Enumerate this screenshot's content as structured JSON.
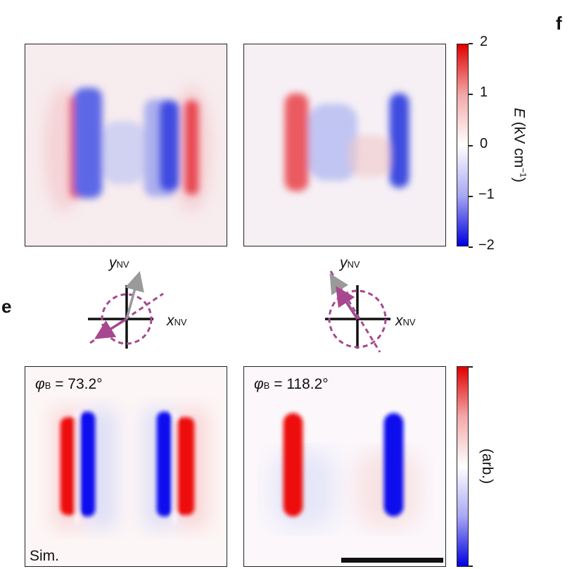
{
  "labels": {
    "panel_e": "e",
    "panel_f": "f",
    "axis_x": "x",
    "axis_y": "y",
    "axis_sub": "NV",
    "sim": "Sim."
  },
  "colorbar_top": {
    "label_symbol": "E",
    "label_units": "(kV cm",
    "label_exp": "−1",
    "label_close": ")",
    "ticks": [
      "2",
      "1",
      "0",
      "−1",
      "−2"
    ],
    "colors": [
      "#e00000",
      "#ffffff",
      "#0000e0"
    ]
  },
  "colorbar_bottom": {
    "label": "(arb.)"
  },
  "sim_left": {
    "phi_symbol": "φ",
    "phi_sub": "B",
    "phi_value": " = 73.2°"
  },
  "sim_right": {
    "phi_symbol": "φ",
    "phi_sub": "B",
    "phi_value": " = 118.2°"
  },
  "field_angles_deg": [
    73.2,
    118.2
  ]
}
